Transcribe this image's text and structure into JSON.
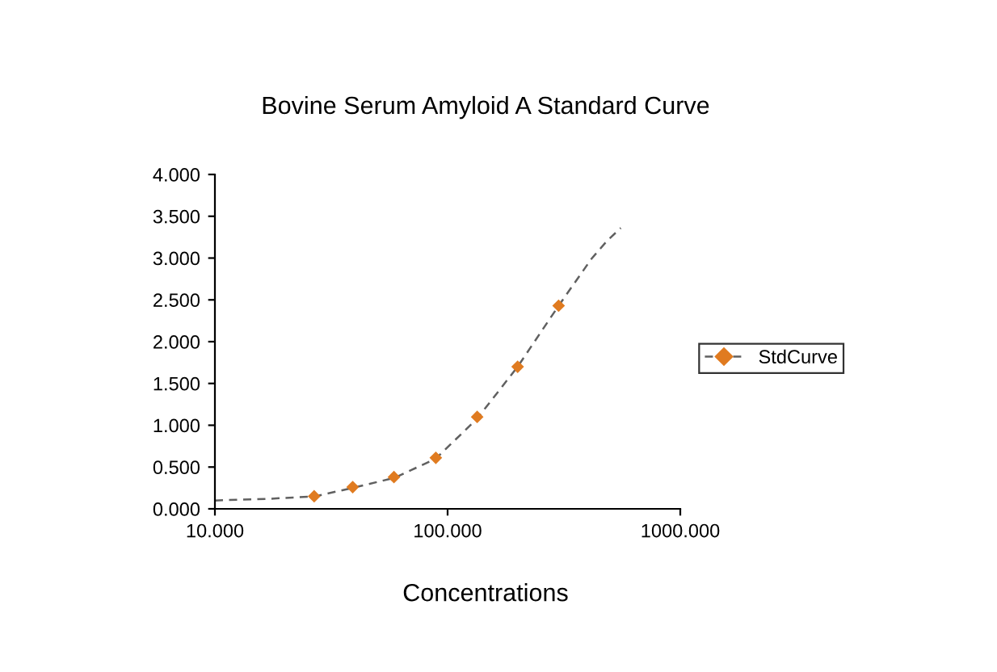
{
  "chart_data": {
    "type": "scatter",
    "title": "Bovine Serum Amyloid A Standard Curve",
    "xlabel": "Concentrations",
    "log": "x",
    "grid": false,
    "legend": "right",
    "xlim": [
      10,
      1000
    ],
    "xticks": [
      {
        "value": 10,
        "label": "10.000"
      },
      {
        "value": 100,
        "label": "100.000"
      },
      {
        "value": 1000,
        "label": "1000.000"
      }
    ],
    "ylim": [
      0,
      4
    ],
    "yticks": [
      {
        "value": 0,
        "label": "0.000"
      },
      {
        "value": 0.5,
        "label": "0.500"
      },
      {
        "value": 1,
        "label": "1.000"
      },
      {
        "value": 1.5,
        "label": "1.500"
      },
      {
        "value": 2,
        "label": "2.000"
      },
      {
        "value": 2.5,
        "label": "2.500"
      },
      {
        "value": 3,
        "label": "3.000"
      },
      {
        "value": 3.5,
        "label": "3.500"
      },
      {
        "value": 4,
        "label": "4.000"
      }
    ],
    "series": [
      {
        "name": "StdCurve",
        "color": "#e07b20",
        "marker": "diamond",
        "x": [
          26.7,
          39.1,
          58.8,
          89,
          134,
          200,
          300
        ],
        "values": [
          0.15,
          0.26,
          0.38,
          0.61,
          1.1,
          1.7,
          2.43
        ]
      },
      {
        "type": "line",
        "color": "#606060",
        "line_style": "dashed",
        "marker": "none",
        "x": [
          10,
          17,
          27,
          39,
          59,
          89,
          134,
          200,
          300,
          415,
          486,
          555
        ],
        "values": [
          0.1,
          0.12,
          0.15,
          0.25,
          0.37,
          0.6,
          1.08,
          1.7,
          2.43,
          2.99,
          3.21,
          3.36
        ]
      }
    ]
  }
}
